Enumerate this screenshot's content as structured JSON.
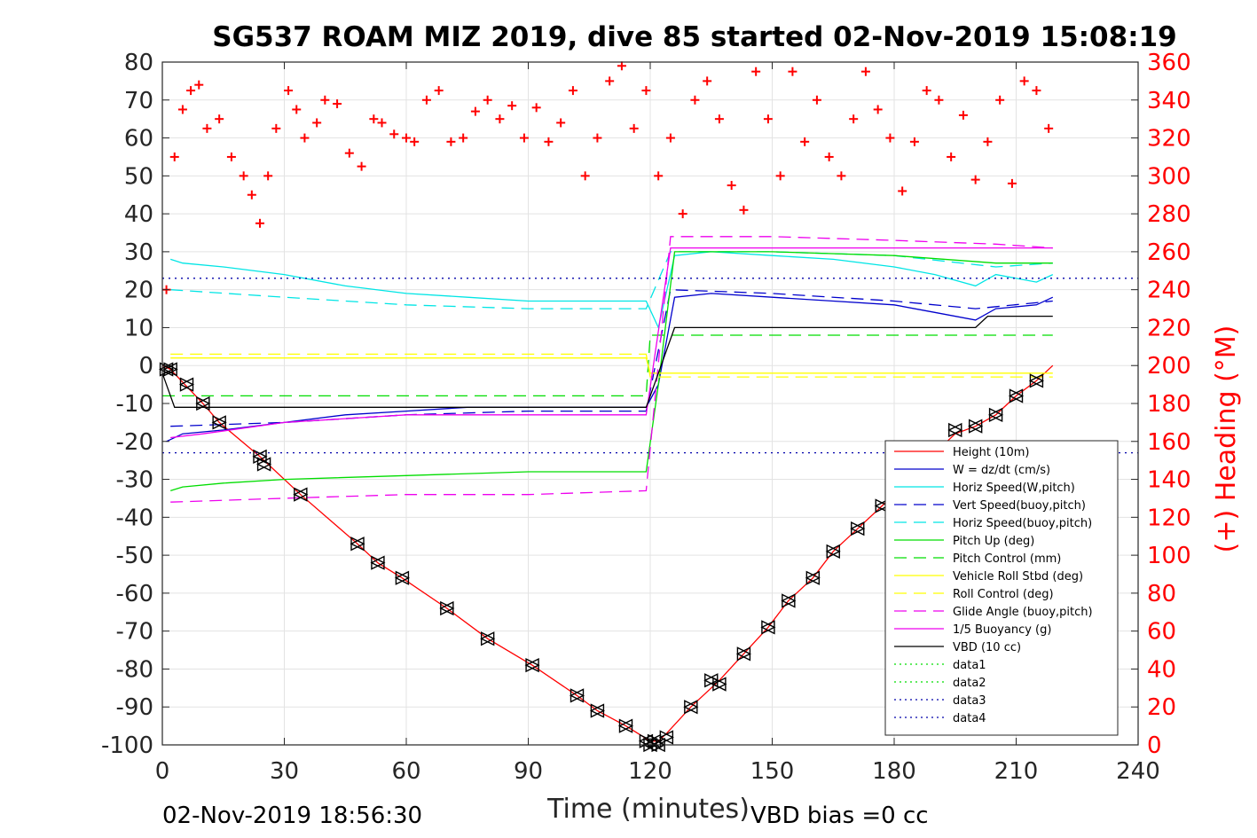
{
  "chart_data": {
    "type": "line",
    "title": "SG537 ROAM MIZ 2019, dive 85 started 02-Nov-2019 15:08:19",
    "xlabel": "Time (minutes)",
    "ylabel": "",
    "y2label": "(+) Heading (°M)",
    "xlim": [
      0,
      240
    ],
    "ylim": [
      -100,
      80
    ],
    "y2lim": [
      0,
      360
    ],
    "xticks": [
      "0",
      "30",
      "60",
      "90",
      "120",
      "150",
      "180",
      "210",
      "240"
    ],
    "yticks": [
      "80",
      "70",
      "60",
      "50",
      "40",
      "30",
      "20",
      "10",
      "0",
      "-10",
      "-20",
      "-30",
      "-40",
      "-50",
      "-60",
      "-70",
      "-80",
      "-90",
      "-100"
    ],
    "y2ticks": [
      "360",
      "340",
      "320",
      "300",
      "280",
      "260",
      "240",
      "220",
      "200",
      "180",
      "160",
      "140",
      "120",
      "100",
      "80",
      "60",
      "40",
      "20",
      "0"
    ],
    "grid": true,
    "legend_position": "bottom-right",
    "footer_left": "02-Nov-2019 18:56:30",
    "footer_right": "VBD bias =0 cc",
    "series": [
      {
        "name": "Height (10m)",
        "color": "#ff0000",
        "style": "solid",
        "x": [
          0,
          2,
          10,
          14,
          24,
          34,
          48,
          53,
          59,
          70,
          80,
          91,
          102,
          107,
          114,
          120,
          122,
          124,
          130,
          137,
          143,
          149,
          154,
          160,
          165,
          171,
          177,
          183,
          189,
          195,
          200,
          205,
          210,
          215,
          219
        ],
        "y": [
          0,
          -1,
          -10,
          -15,
          -24,
          -34,
          -47,
          -52,
          -56,
          -64,
          -72,
          -79,
          -87,
          -91,
          -95,
          -99,
          -99,
          -97,
          -90,
          -83,
          -76,
          -69,
          -62,
          -56,
          -49,
          -43,
          -37,
          -31,
          -24,
          -18,
          -16,
          -13,
          -8,
          -4,
          0
        ]
      },
      {
        "name": "W = dz/dt (cm/s)",
        "color": "#0000cc",
        "style": "solid",
        "x": [
          1,
          5,
          15,
          30,
          45,
          60,
          75,
          90,
          105,
          119,
          122,
          126,
          135,
          150,
          165,
          180,
          190,
          200,
          205,
          215,
          219
        ],
        "y": [
          -20,
          -18,
          -17,
          -15,
          -13,
          -12,
          -11,
          -11,
          -11,
          -11,
          -5,
          18,
          19,
          18,
          17,
          16,
          14,
          12,
          15,
          16,
          18
        ]
      },
      {
        "name": "Horiz Speed(W,pitch)",
        "color": "#00e5e5",
        "style": "solid",
        "x": [
          2,
          5,
          15,
          30,
          45,
          60,
          75,
          90,
          105,
          119,
          122,
          126,
          135,
          150,
          165,
          180,
          190,
          200,
          205,
          215,
          219
        ],
        "y": [
          28,
          27,
          26,
          24,
          21,
          19,
          18,
          17,
          17,
          17,
          10,
          29,
          30,
          29,
          28,
          26,
          24,
          21,
          24,
          22,
          24
        ]
      },
      {
        "name": "Vert Speed(buoy,pitch)",
        "color": "#0000cc",
        "style": "dashed",
        "x": [
          2,
          30,
          60,
          90,
          119,
          125,
          150,
          180,
          200,
          219
        ],
        "y": [
          -16,
          -15,
          -13,
          -12,
          -12,
          20,
          19,
          17,
          15,
          17
        ]
      },
      {
        "name": "Horiz Speed(buoy,pitch)",
        "color": "#00e5e5",
        "style": "dashed",
        "x": [
          2,
          30,
          60,
          90,
          119,
          125,
          150,
          180,
          205,
          219
        ],
        "y": [
          20,
          18,
          16,
          15,
          15,
          30,
          30,
          29,
          26,
          27
        ]
      },
      {
        "name": "Pitch Up (deg)",
        "color": "#00dd00",
        "style": "solid",
        "x": [
          2,
          5,
          15,
          30,
          60,
          90,
          119,
          122,
          126,
          150,
          180,
          205,
          219
        ],
        "y": [
          -33,
          -32,
          -31,
          -30,
          -29,
          -28,
          -28,
          -5,
          30,
          30,
          29,
          27,
          27
        ]
      },
      {
        "name": "Pitch Control (mm)",
        "color": "#00dd00",
        "style": "dashed",
        "x": [
          0,
          119,
          120,
          219
        ],
        "y": [
          -8,
          -8,
          8,
          8
        ]
      },
      {
        "name": "Vehicle Roll Stbd (deg)",
        "color": "#ffff00",
        "style": "solid",
        "x": [
          2,
          119,
          120,
          219
        ],
        "y": [
          2,
          2,
          -2,
          -2
        ]
      },
      {
        "name": "Roll Control (deg)",
        "color": "#ffff00",
        "style": "dashed",
        "x": [
          2,
          119,
          120,
          219
        ],
        "y": [
          3,
          3,
          -3,
          -3
        ]
      },
      {
        "name": "Glide Angle (buoy,pitch)",
        "color": "#ee00ee",
        "style": "dashed",
        "x": [
          2,
          30,
          60,
          90,
          119,
          125,
          150,
          180,
          205,
          219
        ],
        "y": [
          -36,
          -35,
          -34,
          -34,
          -33,
          34,
          34,
          33,
          32,
          31
        ]
      },
      {
        "name": "1/5 Buoyancy (g)",
        "color": "#ee00ee",
        "style": "solid",
        "x": [
          2,
          10,
          30,
          60,
          119,
          125,
          219
        ],
        "y": [
          -19,
          -18,
          -15,
          -13,
          -13,
          31,
          31
        ]
      },
      {
        "name": "VBD (10 cc)",
        "color": "#000000",
        "style": "solid",
        "x": [
          0,
          3,
          119,
          122,
          126,
          200,
          203,
          219
        ],
        "y": [
          -2,
          -11,
          -11,
          -2,
          10,
          10,
          13,
          13
        ]
      },
      {
        "name": "data1",
        "color": "#00dd00",
        "style": "dotted",
        "x": [],
        "y": []
      },
      {
        "name": "data2",
        "color": "#00dd00",
        "style": "dotted",
        "x": [],
        "y": []
      },
      {
        "name": "data3",
        "color": "#0000aa",
        "style": "dotted",
        "x": [
          0,
          240
        ],
        "y": [
          23,
          23
        ]
      },
      {
        "name": "data4",
        "color": "#0000aa",
        "style": "dotted",
        "x": [
          0,
          240
        ],
        "y": [
          -23,
          -23
        ]
      }
    ],
    "heading": {
      "color": "#ff0000",
      "marker": "+",
      "x": [
        1,
        3,
        5,
        7,
        9,
        11,
        14,
        17,
        20,
        22,
        24,
        26,
        28,
        31,
        33,
        35,
        38,
        40,
        43,
        46,
        49,
        52,
        54,
        57,
        60,
        62,
        65,
        68,
        71,
        74,
        77,
        80,
        83,
        86,
        89,
        92,
        95,
        98,
        101,
        104,
        107,
        110,
        113,
        116,
        119,
        122,
        125,
        128,
        131,
        134,
        137,
        140,
        143,
        146,
        149,
        152,
        155,
        158,
        161,
        164,
        167,
        170,
        173,
        176,
        179,
        182,
        185,
        188,
        191,
        194,
        197,
        200,
        203,
        206,
        209,
        212,
        215,
        218
      ],
      "y": [
        240,
        310,
        335,
        345,
        348,
        325,
        330,
        310,
        300,
        290,
        275,
        300,
        325,
        345,
        335,
        320,
        328,
        340,
        338,
        312,
        305,
        330,
        328,
        322,
        320,
        318,
        340,
        345,
        318,
        320,
        334,
        340,
        330,
        337,
        320,
        336,
        318,
        328,
        345,
        300,
        320,
        350,
        358,
        325,
        345,
        300,
        320,
        280,
        340,
        350,
        330,
        295,
        282,
        355,
        330,
        300,
        355,
        318,
        340,
        310,
        300,
        330,
        355,
        335,
        320,
        292,
        318,
        345,
        340,
        310,
        332,
        298,
        318,
        340,
        296,
        350,
        345,
        325
      ]
    },
    "dive_markers": {
      "color": "#000000",
      "x": [
        1,
        2,
        6,
        10,
        14,
        24,
        25,
        34,
        48,
        53,
        59,
        70,
        80,
        91,
        102,
        107,
        114,
        119,
        120,
        121,
        122,
        124,
        130,
        135,
        137,
        143,
        149,
        154,
        160,
        165,
        171,
        177,
        195,
        200,
        205,
        210,
        215
      ],
      "y": [
        -1,
        -1,
        -5,
        -10,
        -15,
        -24,
        -26,
        -34,
        -47,
        -52,
        -56,
        -64,
        -72,
        -79,
        -87,
        -91,
        -95,
        -99,
        -100,
        -99,
        -100,
        -98,
        -90,
        -83,
        -84,
        -76,
        -69,
        -62,
        -56,
        -49,
        -43,
        -37,
        -17,
        -16,
        -13,
        -8,
        -4
      ]
    }
  }
}
